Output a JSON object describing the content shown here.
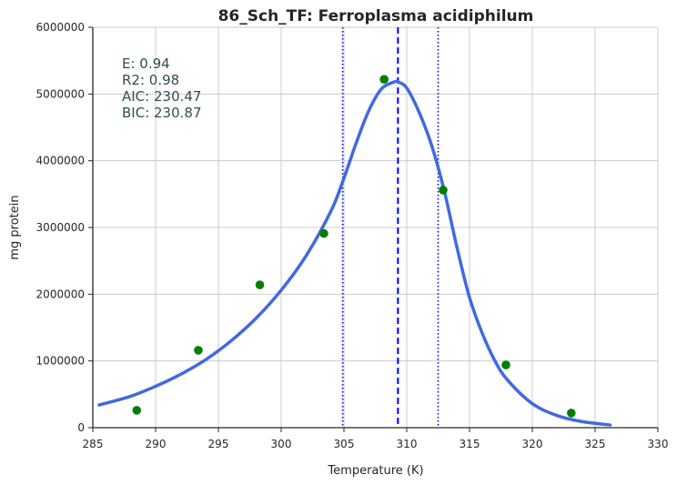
{
  "chart_data": {
    "type": "scatter",
    "title": "86_Sch_TF: Ferroplasma acidiphilum",
    "xlabel": "Temperature (K)",
    "ylabel": "mg protein",
    "xlim": [
      285,
      330
    ],
    "ylim": [
      0,
      6000000
    ],
    "x_ticks": [
      285,
      290,
      295,
      300,
      305,
      310,
      315,
      320,
      325,
      330
    ],
    "y_ticks": [
      0,
      1000000,
      2000000,
      3000000,
      4000000,
      5000000,
      6000000
    ],
    "grid": true,
    "stats": [
      "E:  0.94",
      "R2:  0.98",
      "AIC: 230.47",
      "BIC: 230.87"
    ],
    "observed_points": {
      "color": "#008000",
      "x": [
        288.5,
        293.4,
        298.3,
        303.4,
        308.2,
        312.9,
        317.9,
        323.1
      ],
      "y": [
        260000,
        1160000,
        2140000,
        2910000,
        5220000,
        3560000,
        940000,
        220000
      ]
    },
    "fitted_curve": {
      "color": "#4169e1",
      "x": [
        285.5,
        288,
        290,
        292,
        294,
        296,
        298,
        300,
        302,
        304,
        305,
        306,
        307,
        308,
        309,
        309.3,
        310,
        311,
        312,
        313,
        314,
        315,
        316,
        317,
        318,
        320,
        322,
        324,
        326.2
      ],
      "y": [
        340000,
        470000,
        620000,
        800000,
        1020000,
        1300000,
        1640000,
        2060000,
        2580000,
        3260000,
        3740000,
        4280000,
        4760000,
        5080000,
        5180000,
        5180000,
        5090000,
        4720000,
        4220000,
        3540000,
        2700000,
        1950000,
        1420000,
        1010000,
        720000,
        360000,
        180000,
        90000,
        40000
      ]
    },
    "peak_line": {
      "x": 309.3,
      "color": "#0000ff",
      "style": "dashed"
    },
    "bound_lines": {
      "x": [
        304.9,
        312.5
      ],
      "color": "#0000ff",
      "style": "dotted"
    }
  }
}
